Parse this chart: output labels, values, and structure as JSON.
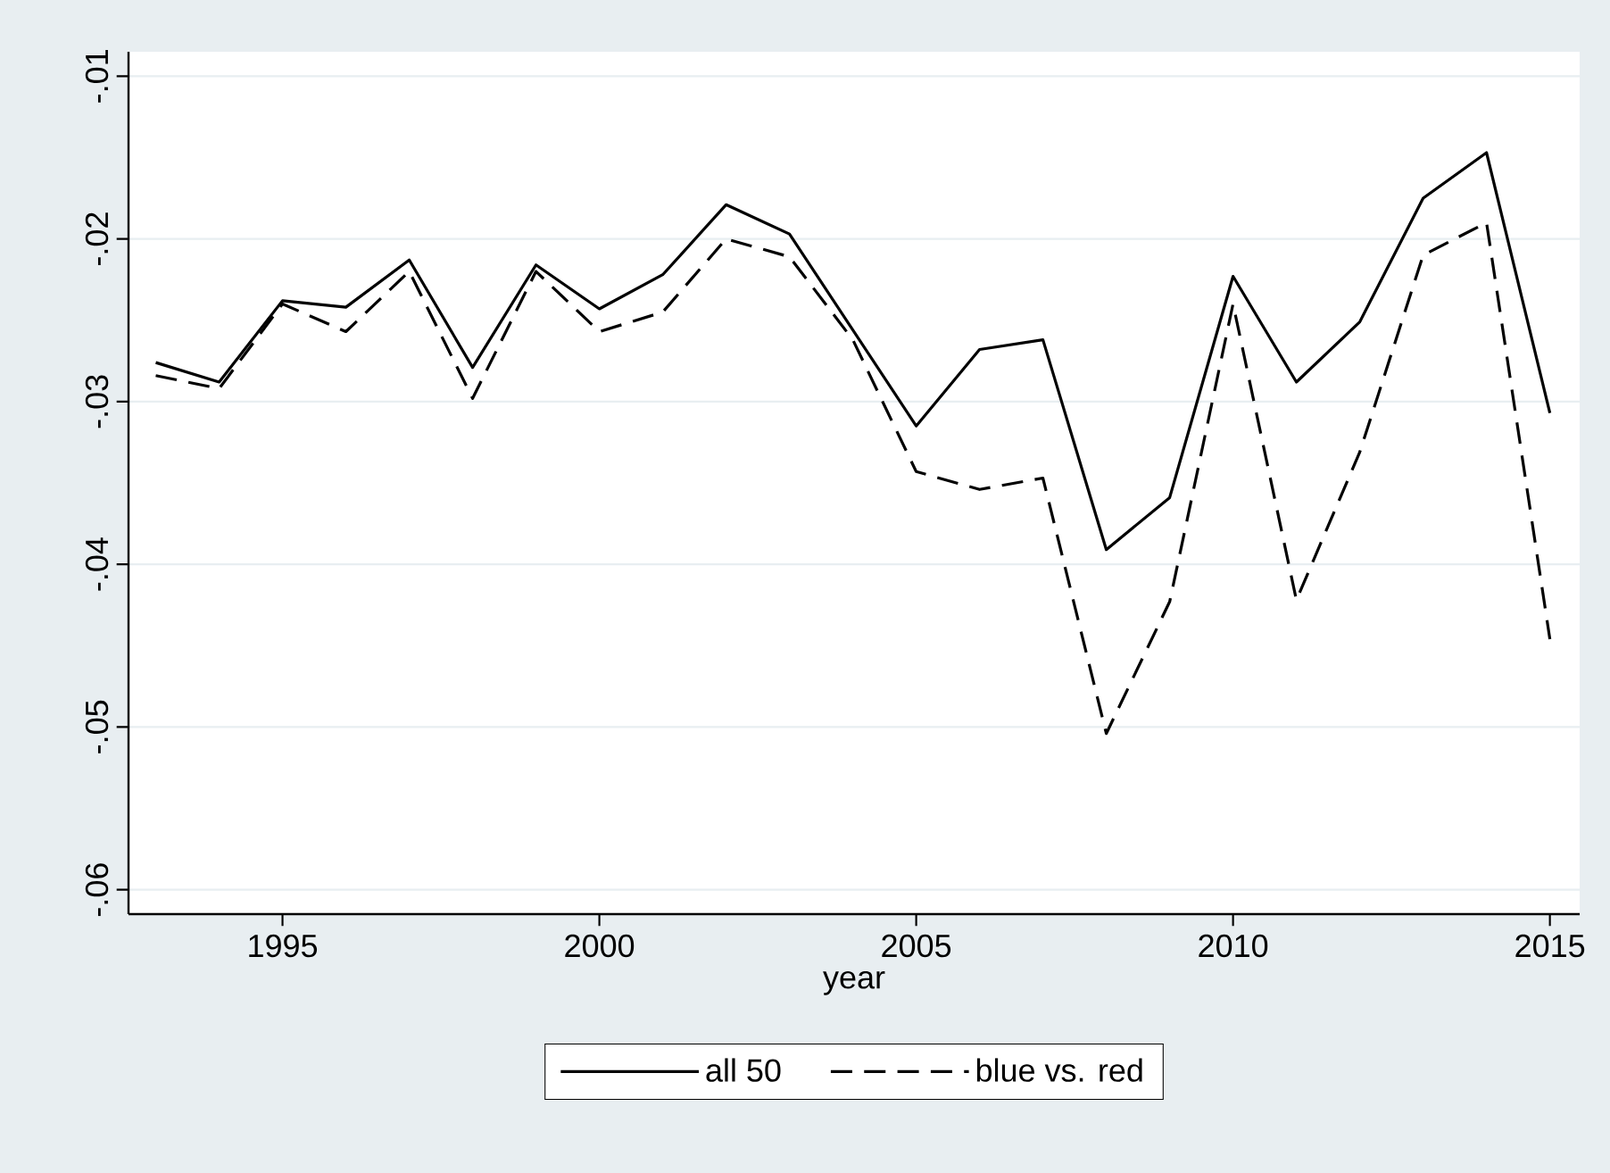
{
  "chart_data": {
    "type": "line",
    "xlabel": "year",
    "x": [
      1993,
      1994,
      1995,
      1996,
      1997,
      1998,
      1999,
      2000,
      2001,
      2002,
      2003,
      2004,
      2005,
      2006,
      2007,
      2008,
      2009,
      2010,
      2011,
      2012,
      2013,
      2014,
      2015
    ],
    "series": [
      {
        "name": "all 50",
        "color": "#000000",
        "line_style": "solid",
        "values": [
          -0.0276,
          -0.0288,
          -0.0238,
          -0.0242,
          -0.0213,
          -0.0279,
          -0.0216,
          -0.0243,
          -0.0222,
          -0.0179,
          -0.0197,
          -0.0256,
          -0.0315,
          -0.0268,
          -0.0262,
          -0.0391,
          -0.0359,
          -0.0223,
          -0.0288,
          -0.0251,
          -0.0175,
          -0.0147,
          -0.0307
        ]
      },
      {
        "name": "blue vs. red",
        "color": "#000000",
        "line_style": "dashed",
        "values": [
          -0.0284,
          -0.0292,
          -0.024,
          -0.0257,
          -0.022,
          -0.0298,
          -0.022,
          -0.0257,
          -0.0245,
          -0.02,
          -0.0211,
          -0.0262,
          -0.0343,
          -0.0354,
          -0.0347,
          -0.0504,
          -0.0423,
          -0.024,
          -0.0422,
          -0.0331,
          -0.021,
          -0.019,
          -0.0446
        ]
      }
    ],
    "xlim": [
      1992.57,
      2015.47
    ],
    "ylim": [
      -0.0615,
      -0.0085
    ],
    "xticks": [
      1995,
      2000,
      2005,
      2010,
      2015
    ],
    "yticks": [
      {
        "value": -0.06,
        "label": "-.06"
      },
      {
        "value": -0.05,
        "label": "-.05"
      },
      {
        "value": -0.04,
        "label": "-.04"
      },
      {
        "value": -0.03,
        "label": "-.03"
      },
      {
        "value": -0.02,
        "label": "-.02"
      },
      {
        "value": -0.01,
        "label": "-.01"
      }
    ],
    "grid": "y",
    "legend": "bottom",
    "marker": "none"
  }
}
